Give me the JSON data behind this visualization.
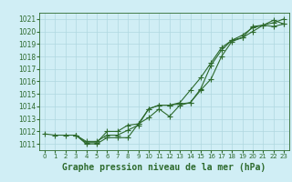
{
  "bg_color": "#d0eef5",
  "grid_color": "#b0d8e0",
  "line_color": "#2d6a2d",
  "xlabel": "Graphe pression niveau de la mer (hPa)",
  "xlabel_fontsize": 7,
  "ylim": [
    1010.5,
    1021.5
  ],
  "xlim": [
    -0.5,
    23.5
  ],
  "yticks": [
    1011,
    1012,
    1013,
    1014,
    1015,
    1016,
    1017,
    1018,
    1019,
    1020,
    1021
  ],
  "xticks": [
    0,
    1,
    2,
    3,
    4,
    5,
    6,
    7,
    8,
    9,
    10,
    11,
    12,
    13,
    14,
    15,
    16,
    17,
    18,
    19,
    20,
    21,
    22,
    23
  ],
  "line1_x": [
    0,
    1,
    2,
    3,
    4,
    5,
    6,
    7,
    8,
    9,
    10,
    11,
    12,
    13,
    14,
    15,
    16,
    17,
    18,
    19,
    20,
    21,
    22,
    23
  ],
  "line1_y": [
    1011.8,
    1011.7,
    1011.7,
    1011.7,
    1011.0,
    1011.0,
    1011.5,
    1011.5,
    1011.5,
    1012.6,
    1013.8,
    1014.1,
    1014.1,
    1014.2,
    1014.3,
    1015.3,
    1016.2,
    1018.0,
    1019.2,
    1019.5,
    1020.4,
    1020.5,
    1020.4,
    1020.6
  ],
  "line2_x": [
    3,
    4,
    5,
    6,
    7,
    8,
    9,
    10,
    11,
    12,
    13,
    14,
    15,
    16,
    17,
    18,
    19,
    20,
    21,
    22,
    23
  ],
  "line2_y": [
    1011.7,
    1011.1,
    1011.1,
    1012.0,
    1012.0,
    1012.5,
    1012.6,
    1013.1,
    1013.8,
    1013.2,
    1014.1,
    1014.3,
    1015.4,
    1017.3,
    1018.5,
    1019.3,
    1019.7,
    1020.3,
    1020.5,
    1020.9,
    1020.6
  ],
  "line3_x": [
    3,
    4,
    5,
    6,
    7,
    8,
    9,
    10,
    11,
    12,
    13,
    14,
    15,
    16,
    17,
    18,
    19,
    20,
    21,
    22,
    23
  ],
  "line3_y": [
    1011.7,
    1011.2,
    1011.2,
    1011.7,
    1011.7,
    1012.1,
    1012.5,
    1013.8,
    1014.1,
    1014.1,
    1014.3,
    1015.3,
    1016.3,
    1017.5,
    1018.7,
    1019.3,
    1019.5,
    1020.0,
    1020.5,
    1020.7,
    1021.0
  ]
}
